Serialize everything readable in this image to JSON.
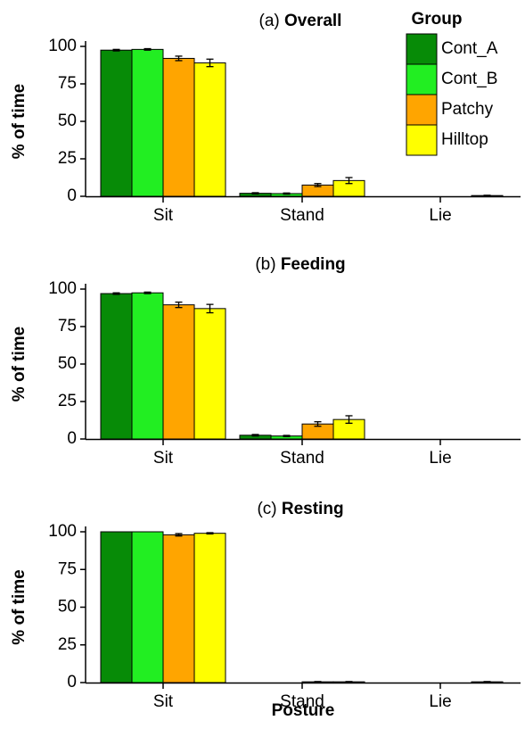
{
  "chart_data": {
    "type": "bar",
    "xlabel": "Posture",
    "ylabel": "% of time",
    "ylim": [
      0,
      100
    ],
    "yticks": [
      0,
      25,
      50,
      75,
      100
    ],
    "categories": [
      "Sit",
      "Stand",
      "Lie"
    ],
    "legend": {
      "title": "Group",
      "placement": "top-right",
      "entries": [
        {
          "name": "Cont_A",
          "color": "#078b07"
        },
        {
          "name": "Cont_B",
          "color": "#22ee22"
        },
        {
          "name": "Patchy",
          "color": "#ffa500"
        },
        {
          "name": "Hilltop",
          "color": "#ffff00"
        }
      ]
    },
    "panels": [
      {
        "title_prefix": "(a)",
        "title": "Overall",
        "series": [
          {
            "name": "Cont_A",
            "values": [
              97.5,
              2.0,
              0.0
            ],
            "errors": [
              0.5,
              0.4,
              0.0
            ]
          },
          {
            "name": "Cont_B",
            "values": [
              98.0,
              1.8,
              0.0
            ],
            "errors": [
              0.5,
              0.4,
              0.0
            ]
          },
          {
            "name": "Patchy",
            "values": [
              92.0,
              7.5,
              0.0
            ],
            "errors": [
              1.5,
              1.0,
              0.0
            ]
          },
          {
            "name": "Hilltop",
            "values": [
              89.0,
              10.5,
              0.5
            ],
            "errors": [
              2.5,
              2.0,
              0.2
            ]
          }
        ]
      },
      {
        "title_prefix": "(b)",
        "title": "Feeding",
        "series": [
          {
            "name": "Cont_A",
            "values": [
              97.0,
              2.5,
              0.0
            ],
            "errors": [
              0.5,
              0.5,
              0.0
            ]
          },
          {
            "name": "Cont_B",
            "values": [
              97.5,
              2.0,
              0.0
            ],
            "errors": [
              0.5,
              0.4,
              0.0
            ]
          },
          {
            "name": "Patchy",
            "values": [
              89.5,
              10.0,
              0.0
            ],
            "errors": [
              1.8,
              1.5,
              0.0
            ]
          },
          {
            "name": "Hilltop",
            "values": [
              87.0,
              13.0,
              0.0
            ],
            "errors": [
              2.8,
              2.5,
              0.0
            ]
          }
        ]
      },
      {
        "title_prefix": "(c)",
        "title": "Resting",
        "series": [
          {
            "name": "Cont_A",
            "values": [
              100.0,
              0.0,
              0.0
            ],
            "errors": [
              0.0,
              0.0,
              0.0
            ]
          },
          {
            "name": "Cont_B",
            "values": [
              100.0,
              0.0,
              0.0
            ],
            "errors": [
              0.0,
              0.0,
              0.0
            ]
          },
          {
            "name": "Patchy",
            "values": [
              98.0,
              0.5,
              0.0
            ],
            "errors": [
              0.8,
              0.2,
              0.0
            ]
          },
          {
            "name": "Hilltop",
            "values": [
              99.0,
              0.5,
              0.5
            ],
            "errors": [
              0.4,
              0.2,
              0.2
            ]
          }
        ]
      }
    ]
  }
}
